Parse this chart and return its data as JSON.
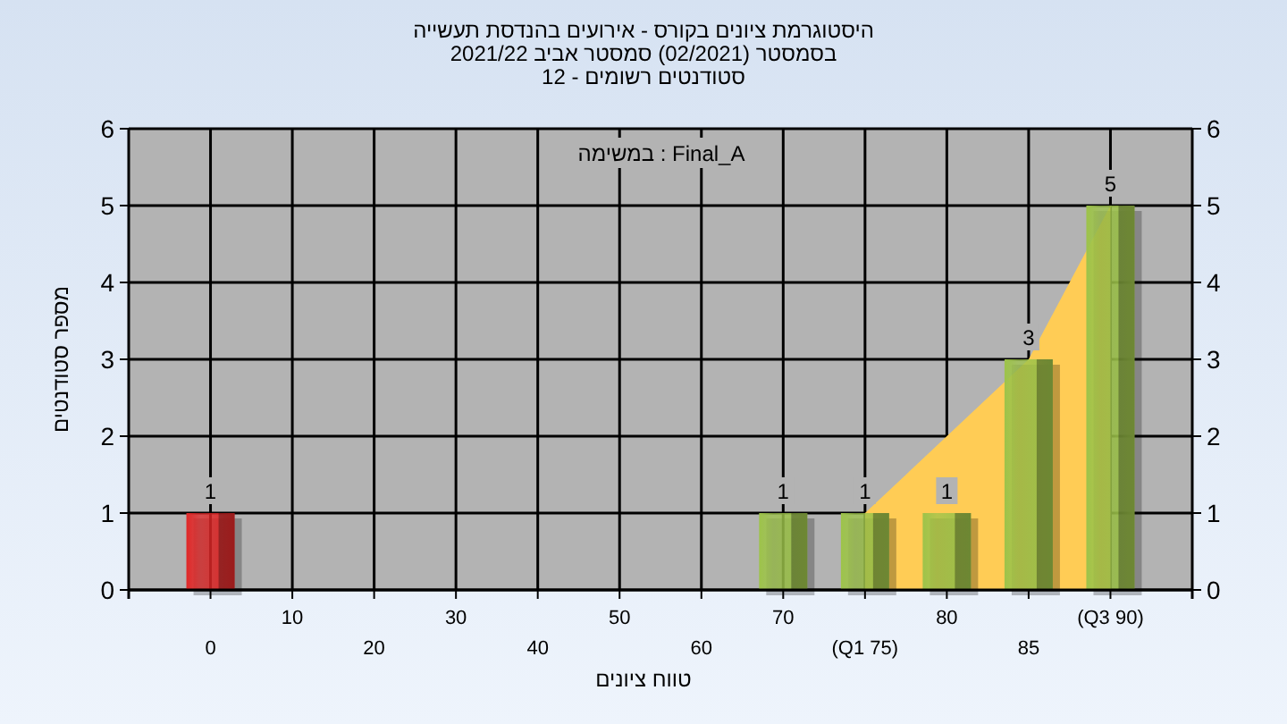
{
  "chart_data": {
    "type": "bar",
    "title": "היסטוגרמת ציונים בקורס - אירועים בהנדסת תעשייה",
    "subtitle": "בסמסטר  (02/2021)  סמסטר אביב 2021/22\nסטודנטים רשומים - 12",
    "xlabel": "טווח ציונים",
    "ylabel": "מספר סטודנטים",
    "annotations": [
      "במשימה : Final_A"
    ],
    "categories": [
      "0",
      "10",
      "20",
      "30",
      "40",
      "50",
      "60",
      "70",
      "(Q1 75)",
      "80",
      "85",
      "(Q3 90)"
    ],
    "series": [
      {
        "type": "area",
        "color": "#ffcc55",
        "values": [
          null,
          null,
          null,
          null,
          null,
          null,
          null,
          null,
          1,
          2,
          3,
          5
        ]
      },
      {
        "colors": [
          "#e02828",
          "#9dc34a",
          "#9dc34a",
          "#9dc34a",
          "#9dc34a",
          "#9dc34a",
          "#9dc34a",
          "#9dc34a",
          "#9dc34a",
          "#9dc34a",
          "#9dc34a",
          "#9dc34a"
        ],
        "values": [
          1,
          0,
          0,
          0,
          0,
          0,
          0,
          1,
          1,
          1,
          3,
          5
        ],
        "value_labels": [
          "1",
          null,
          null,
          null,
          null,
          null,
          null,
          "1",
          "1",
          "1",
          "3",
          "5"
        ]
      }
    ],
    "ylim": [
      0,
      6
    ],
    "yticks": [
      0,
      1,
      2,
      3,
      4,
      5,
      6
    ],
    "y2lim": [
      0,
      6
    ],
    "y2ticks": [
      0,
      1,
      2,
      3,
      4,
      5,
      6
    ],
    "grid": true
  }
}
